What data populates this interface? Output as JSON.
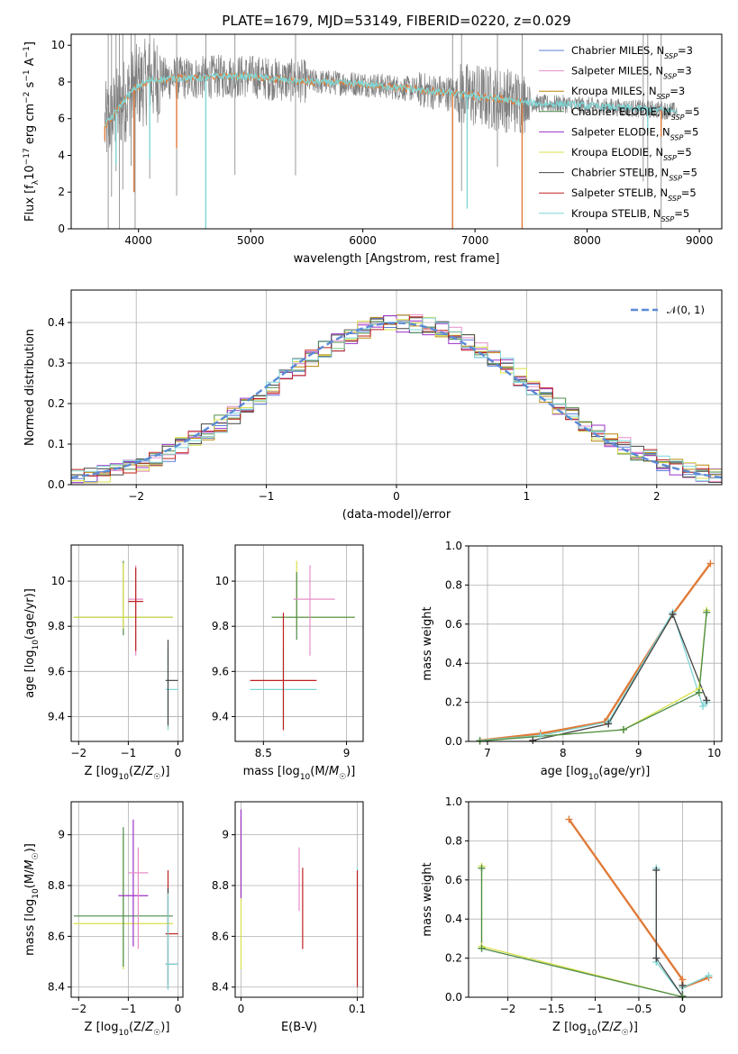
{
  "figure": {
    "title": "PLATE=1679, MJD=53149, FIBERID=0220, z=0.029"
  },
  "colors": {
    "Chabrier MILES": "#5b7fd6",
    "Salpeter MILES": "#e58ec8",
    "Kroupa MILES": "#b8860b",
    "Chabrier ELODIE": "#4c8c4a",
    "Salpeter ELODIE": "#9b30c8",
    "Kroupa ELODIE": "#d9e04a",
    "Chabrier STELIB": "#444444",
    "Salpeter STELIB": "#c02020",
    "Kroupa STELIB": "#7fd6d6",
    "data": "#808080",
    "overlap": "#e07b39",
    "gauss": "#5b8ad6"
  },
  "chart_data": [
    {
      "id": "spectrum",
      "type": "line",
      "xlabel": "wavelength [Angstrom, rest frame]",
      "ylabel": "Flux [f_λ10^-17 erg cm^-2 s^-1 A^-1]",
      "xlim": [
        3400,
        9200
      ],
      "ylim": [
        0,
        10.6
      ],
      "xticks": [
        4000,
        5000,
        6000,
        7000,
        8000,
        9000
      ],
      "yticks": [
        0,
        2,
        4,
        6,
        8,
        10
      ],
      "grid": false,
      "legend_position": "upper right",
      "legend": [
        {
          "text": "Chabrier MILES, N",
          "sub": "SSP",
          "tail": "=3",
          "key": "Chabrier MILES"
        },
        {
          "text": "Salpeter MILES, N",
          "sub": "SSP",
          "tail": "=3",
          "key": "Salpeter MILES"
        },
        {
          "text": "Kroupa MILES, N",
          "sub": "SSP",
          "tail": "=3",
          "key": "Kroupa MILES"
        },
        {
          "text": "Chabrier ELODIE, N",
          "sub": "SSP",
          "tail": "=5",
          "key": "Chabrier ELODIE"
        },
        {
          "text": "Salpeter ELODIE, N",
          "sub": "SSP",
          "tail": "=5",
          "key": "Salpeter ELODIE"
        },
        {
          "text": "Kroupa ELODIE, N",
          "sub": "SSP",
          "tail": "=5",
          "key": "Kroupa ELODIE"
        },
        {
          "text": "Chabrier STELIB, N",
          "sub": "SSP",
          "tail": "=5",
          "key": "Chabrier STELIB"
        },
        {
          "text": "Salpeter STELIB, N",
          "sub": "SSP",
          "tail": "=5",
          "key": "Salpeter STELIB"
        },
        {
          "text": "Kroupa STELIB, N",
          "sub": "SSP",
          "tail": "=5",
          "key": "Kroupa STELIB"
        }
      ],
      "continuum": {
        "x": [
          3700,
          3800,
          3900,
          4000,
          4100,
          4300,
          4500,
          4700,
          5000,
          5300,
          5600,
          6000,
          6300,
          6600,
          6900,
          7200,
          7400,
          7600,
          7800,
          8000,
          8300,
          8600,
          8800
        ],
        "y": [
          5.6,
          6.4,
          7.2,
          7.8,
          8.1,
          8.2,
          8.2,
          8.3,
          8.3,
          8.1,
          8.0,
          7.9,
          7.7,
          7.5,
          7.3,
          7.1,
          6.9,
          6.8,
          6.8,
          6.7,
          6.6,
          6.5,
          6.4
        ]
      },
      "data_spikes": [
        3730,
        3760,
        3800,
        3830,
        3860,
        3935,
        3970,
        4100,
        4340,
        4600,
        4860,
        5400,
        6800,
        6880,
        7200,
        7420,
        8500,
        8540,
        8660
      ],
      "model_dips": [
        {
          "x": 3700,
          "y": 4.8
        },
        {
          "x": 3800,
          "y": 3.5
        },
        {
          "x": 3960,
          "y": 2.0
        },
        {
          "x": 4100,
          "y": 3.8
        },
        {
          "x": 4340,
          "y": 4.4
        },
        {
          "x": 4600,
          "y": 0
        },
        {
          "x": 6800,
          "y": 0
        },
        {
          "x": 6930,
          "y": 1.1
        },
        {
          "x": 7420,
          "y": 0
        },
        {
          "x": 8540,
          "y": 5.3
        },
        {
          "x": 8660,
          "y": 5.0
        }
      ]
    },
    {
      "id": "residuals",
      "type": "bar",
      "xlabel": "(data-model)/error",
      "ylabel": "Normed distribution",
      "xlim": [
        -2.5,
        2.5
      ],
      "ylim": [
        0,
        0.48
      ],
      "xticks": [
        -2,
        -1,
        0,
        1,
        2
      ],
      "yticks": [
        0,
        0.1,
        0.2,
        0.3,
        0.4
      ],
      "grid": true,
      "legend": [
        {
          "text": "𝒩(0, 1)",
          "key": "gauss"
        }
      ],
      "bin_width": 0.1,
      "bin_start": -2.5
    },
    {
      "id": "age_vs_Z",
      "type": "scatter",
      "xlabel": "Z [log10(Z/Z☉)]",
      "ylabel": "age [log10(age/yr)]",
      "xlim": [
        -2.15,
        0.1
      ],
      "ylim": [
        9.29,
        10.16
      ],
      "xticks": [
        -2,
        -1,
        0
      ],
      "yticks": [
        9.4,
        9.6,
        9.8,
        10.0
      ],
      "grid": true,
      "errorbars": [
        {
          "x": -1.1,
          "y": 9.84,
          "xerr": [
            1.0,
            1.0
          ],
          "yerr": [
            0.08,
            0.25
          ],
          "key": "Chabrier ELODIE"
        },
        {
          "x": -1.1,
          "y": 9.84,
          "xerr": [
            1.0,
            1.0
          ],
          "yerr": [
            0.05,
            0.24
          ],
          "key": "Kroupa ELODIE"
        },
        {
          "x": -0.85,
          "y": 9.92,
          "xerr": [
            0.15,
            0.15
          ],
          "yerr": [
            0.25,
            0.15
          ],
          "key": "Salpeter MILES"
        },
        {
          "x": -0.85,
          "y": 9.91,
          "xerr": [
            0.15,
            0.15
          ],
          "yerr": [
            0.22,
            0.15
          ],
          "key": "Salpeter STELIB"
        },
        {
          "x": -0.2,
          "y": 9.52,
          "xerr": [
            0.05,
            0.2
          ],
          "yerr": [
            0.18,
            0.18
          ],
          "key": "Kroupa STELIB"
        },
        {
          "x": -0.2,
          "y": 9.56,
          "xerr": [
            0.05,
            0.2
          ],
          "yerr": [
            0.2,
            0.18
          ],
          "key": "Chabrier STELIB"
        }
      ]
    },
    {
      "id": "age_vs_mass",
      "type": "scatter",
      "xlabel": "mass [log10(M/M☉)]",
      "ylabel": "",
      "xlim": [
        8.33,
        9.1
      ],
      "ylim": [
        9.29,
        10.16
      ],
      "xticks": [
        8.5,
        9.0
      ],
      "yticks": [
        9.4,
        9.6,
        9.8,
        10.0
      ],
      "grid": true,
      "errorbars": [
        {
          "x": 8.7,
          "y": 9.84,
          "xerr": [
            0.15,
            0.35
          ],
          "yerr": [
            0.05,
            0.25
          ],
          "key": "Kroupa ELODIE"
        },
        {
          "x": 8.7,
          "y": 9.84,
          "xerr": [
            0.15,
            0.35
          ],
          "yerr": [
            0.1,
            0.2
          ],
          "key": "Chabrier ELODIE"
        },
        {
          "x": 8.78,
          "y": 9.92,
          "xerr": [
            0.1,
            0.15
          ],
          "yerr": [
            0.25,
            0.15
          ],
          "key": "Salpeter MILES"
        },
        {
          "x": 8.62,
          "y": 9.52,
          "xerr": [
            0.2,
            0.2
          ],
          "yerr": [
            0.18,
            0.18
          ],
          "key": "Kroupa STELIB"
        },
        {
          "x": 8.62,
          "y": 9.56,
          "xerr": [
            0.2,
            0.2
          ],
          "yerr": [
            0.22,
            0.3
          ],
          "key": "Salpeter STELIB"
        }
      ]
    },
    {
      "id": "weight_vs_age",
      "type": "line",
      "xlabel": "age [log10(age/yr)]",
      "ylabel": "mass weight",
      "xlim": [
        6.75,
        10.1
      ],
      "ylim": [
        0,
        1.0
      ],
      "xticks": [
        7,
        8,
        9,
        10
      ],
      "yticks": [
        0.0,
        0.2,
        0.4,
        0.6,
        0.8,
        1.0
      ],
      "grid": true,
      "series": [
        {
          "key": "overlap",
          "x": [
            6.9,
            7.7,
            8.55,
            9.45,
            9.95
          ],
          "y": [
            0.005,
            0.04,
            0.1,
            0.65,
            0.91
          ]
        },
        {
          "key": "Kroupa STELIB",
          "x": [
            6.9,
            7.7,
            8.6,
            9.45,
            9.85,
            9.9
          ],
          "y": [
            0.005,
            0.03,
            0.1,
            0.66,
            0.18,
            0.2
          ]
        },
        {
          "key": "Chabrier STELIB",
          "x": [
            7.6,
            8.6,
            9.45,
            9.9
          ],
          "y": [
            0.005,
            0.09,
            0.65,
            0.21
          ]
        },
        {
          "key": "Kroupa ELODIE",
          "x": [
            6.9,
            8.8,
            9.8,
            9.9
          ],
          "y": [
            0.002,
            0.06,
            0.27,
            0.67
          ]
        },
        {
          "key": "Chabrier ELODIE",
          "x": [
            6.9,
            8.8,
            9.8,
            9.9
          ],
          "y": [
            0.002,
            0.06,
            0.25,
            0.66
          ]
        }
      ]
    },
    {
      "id": "mass_vs_Z",
      "type": "scatter",
      "xlabel": "Z [log10(Z/Z☉)]",
      "ylabel": "mass [log10(M/M☉)]",
      "xlim": [
        -2.15,
        0.1
      ],
      "ylim": [
        8.36,
        9.13
      ],
      "xticks": [
        -2,
        -1,
        0
      ],
      "yticks": [
        8.4,
        8.6,
        8.8,
        9.0
      ],
      "grid": true,
      "errorbars": [
        {
          "x": -1.1,
          "y": 8.65,
          "xerr": [
            1.0,
            1.0
          ],
          "yerr": [
            0.18,
            0.35
          ],
          "key": "Kroupa ELODIE"
        },
        {
          "x": -1.1,
          "y": 8.68,
          "xerr": [
            1.0,
            1.0
          ],
          "yerr": [
            0.2,
            0.35
          ],
          "key": "Chabrier ELODIE"
        },
        {
          "x": -0.9,
          "y": 8.76,
          "xerr": [
            0.3,
            0.3
          ],
          "yerr": [
            0.2,
            0.3
          ],
          "key": "Salpeter ELODIE"
        },
        {
          "x": -0.8,
          "y": 8.85,
          "xerr": [
            0.2,
            0.2
          ],
          "yerr": [
            0.3,
            0.1
          ],
          "key": "Salpeter MILES"
        },
        {
          "x": -0.2,
          "y": 8.61,
          "xerr": [
            0.05,
            0.2
          ],
          "yerr": [
            0.2,
            0.25
          ],
          "key": "Salpeter STELIB"
        },
        {
          "x": -0.2,
          "y": 8.49,
          "xerr": [
            0.05,
            0.2
          ],
          "yerr": [
            0.1,
            0.3
          ],
          "key": "Chabrier STELIB"
        },
        {
          "x": -0.2,
          "y": 8.49,
          "xerr": [
            0.05,
            0.2
          ],
          "yerr": [
            0.1,
            0.28
          ],
          "key": "Kroupa STELIB"
        }
      ]
    },
    {
      "id": "mass_vs_EBV",
      "type": "scatter",
      "xlabel": "E(B-V)",
      "ylabel": "",
      "xlim": [
        -0.005,
        0.105
      ],
      "ylim": [
        8.36,
        9.13
      ],
      "xticks": [
        0.0,
        0.1
      ],
      "yticks": [
        8.4,
        8.6,
        8.8,
        9.0
      ],
      "grid": true,
      "errorbars": [
        {
          "x": 0.0,
          "y": 8.77,
          "xerr": [
            0,
            0
          ],
          "yerr": [
            0.3,
            0.3
          ],
          "key": "Kroupa ELODIE"
        },
        {
          "x": 0.0,
          "y": 8.9,
          "xerr": [
            0,
            0
          ],
          "yerr": [
            0.15,
            0.2
          ],
          "key": "Salpeter ELODIE"
        },
        {
          "x": 0.05,
          "y": 8.8,
          "xerr": [
            0,
            0
          ],
          "yerr": [
            0.1,
            0.15
          ],
          "key": "Salpeter MILES"
        },
        {
          "x": 0.053,
          "y": 8.72,
          "xerr": [
            0,
            0
          ],
          "yerr": [
            0.17,
            0.15
          ],
          "key": "Salpeter STELIB"
        },
        {
          "x": 0.1,
          "y": 8.62,
          "xerr": [
            0,
            0
          ],
          "yerr": [
            0.22,
            0.25
          ],
          "key": "Kroupa STELIB"
        },
        {
          "x": 0.1,
          "y": 8.62,
          "xerr": [
            0,
            0
          ],
          "yerr": [
            0.22,
            0.24
          ],
          "key": "Salpeter STELIB"
        }
      ]
    },
    {
      "id": "weight_vs_Z",
      "type": "line",
      "xlabel": "Z [log10(Z/Z☉)]",
      "ylabel": "mass weight",
      "xlim": [
        -2.45,
        0.45
      ],
      "ylim": [
        0,
        1.0
      ],
      "xticks": [
        -2.0,
        -1.5,
        -1.0,
        -0.5,
        0.0
      ],
      "yticks": [
        0.0,
        0.2,
        0.4,
        0.6,
        0.8,
        1.0
      ],
      "grid": true,
      "series": [
        {
          "key": "overlap",
          "x": [
            -1.3,
            0.0,
            0.0,
            0.3
          ],
          "y": [
            0.91,
            0.09,
            0.05,
            0.1
          ]
        },
        {
          "key": "Kroupa STELIB",
          "x": [
            -0.3,
            -0.3,
            0.0,
            0.0,
            0.3
          ],
          "y": [
            0.66,
            0.18,
            0.005,
            0.05,
            0.11
          ]
        },
        {
          "key": "Chabrier STELIB",
          "x": [
            -0.3,
            -0.3,
            0.0,
            0.0
          ],
          "y": [
            0.65,
            0.2,
            0.005,
            0.06
          ]
        },
        {
          "key": "Kroupa ELODIE",
          "x": [
            -2.3,
            -2.3,
            0.0
          ],
          "y": [
            0.67,
            0.26,
            0.002
          ]
        },
        {
          "key": "Chabrier ELODIE",
          "x": [
            -2.3,
            -2.3,
            0.0
          ],
          "y": [
            0.66,
            0.25,
            0.002
          ]
        }
      ]
    }
  ]
}
